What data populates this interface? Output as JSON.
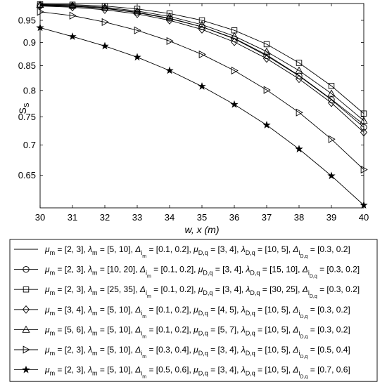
{
  "chart_data": {
    "type": "line",
    "xlabel": "w, x (m)",
    "ylabel": "S",
    "ylabel_sub": "S",
    "xlim": [
      30,
      40
    ],
    "ylim": [
      0.6,
      0.99
    ],
    "y_scale": "log",
    "grid": false,
    "legend_position": "bottom-outside",
    "x_ticks": [
      "30",
      "31",
      "32",
      "33",
      "34",
      "35",
      "36",
      "37",
      "38",
      "39",
      "40"
    ],
    "y_ticks": [
      "0.65",
      "0.7",
      "0.75",
      "0.8",
      "0.85",
      "0.9",
      "0.95"
    ],
    "x": [
      30,
      31,
      32,
      33,
      34,
      35,
      36,
      37,
      38,
      39,
      40
    ],
    "series": [
      {
        "marker": "none",
        "legend": [
          {
            "t": "μ"
          },
          {
            "t": "m",
            "s": "sub"
          },
          {
            "t": " = [2, 3], "
          },
          {
            "t": "λ"
          },
          {
            "t": "m",
            "s": "sub"
          },
          {
            "t": " = [5, 10], "
          },
          {
            "t": "Δ"
          },
          {
            "t": "i",
            "s": "sub"
          },
          {
            "t": "m",
            "s": "subsub"
          },
          {
            "t": " = [0.1, 0.2], "
          },
          {
            "t": "μ"
          },
          {
            "t": "D,q",
            "s": "sub"
          },
          {
            "t": " = [3, 4], "
          },
          {
            "t": "λ"
          },
          {
            "t": "D,q",
            "s": "sub"
          },
          {
            "t": " = [10, 5], "
          },
          {
            "t": "Δ"
          },
          {
            "t": "i",
            "s": "sub"
          },
          {
            "t": "D,q",
            "s": "subsub"
          },
          {
            "t": " = [0.3, 0.2]"
          }
        ],
        "values": [
          0.985,
          0.983,
          0.978,
          0.968,
          0.954,
          0.935,
          0.909,
          0.873,
          0.83,
          0.783,
          0.736
        ]
      },
      {
        "marker": "circle",
        "legend": [
          {
            "t": "μ"
          },
          {
            "t": "m",
            "s": "sub"
          },
          {
            "t": " = [2, 3], "
          },
          {
            "t": "λ"
          },
          {
            "t": "m",
            "s": "sub"
          },
          {
            "t": " = [10, 20], "
          },
          {
            "t": "Δ"
          },
          {
            "t": "i",
            "s": "sub"
          },
          {
            "t": "m",
            "s": "subsub"
          },
          {
            "t": " = [0.1, 0.2], "
          },
          {
            "t": "μ"
          },
          {
            "t": "D,q",
            "s": "sub"
          },
          {
            "t": " = [3, 4], "
          },
          {
            "t": "λ"
          },
          {
            "t": "D,q",
            "s": "sub"
          },
          {
            "t": " = [15, 10], "
          },
          {
            "t": "Δ"
          },
          {
            "t": "i",
            "s": "sub"
          },
          {
            "t": "D,q",
            "s": "subsub"
          },
          {
            "t": " = [0.3, 0.2]"
          }
        ],
        "values": [
          0.986,
          0.984,
          0.979,
          0.969,
          0.955,
          0.935,
          0.908,
          0.871,
          0.829,
          0.782,
          0.731
        ]
      },
      {
        "marker": "square",
        "legend": [
          {
            "t": "μ"
          },
          {
            "t": "m",
            "s": "sub"
          },
          {
            "t": " = [2, 3], "
          },
          {
            "t": "λ"
          },
          {
            "t": "m",
            "s": "sub"
          },
          {
            "t": " = [25, 35], "
          },
          {
            "t": "Δ"
          },
          {
            "t": "i",
            "s": "sub"
          },
          {
            "t": "m",
            "s": "subsub"
          },
          {
            "t": " = [0.1, 0.2], "
          },
          {
            "t": "μ"
          },
          {
            "t": "D,q",
            "s": "sub"
          },
          {
            "t": " = [3, 4], "
          },
          {
            "t": "λ"
          },
          {
            "t": "D,q",
            "s": "sub"
          },
          {
            "t": " = [30, 25], "
          },
          {
            "t": "Δ"
          },
          {
            "t": "i",
            "s": "sub"
          },
          {
            "t": "D,q",
            "s": "subsub"
          },
          {
            "t": " = [0.3, 0.2]"
          }
        ],
        "values": [
          0.988,
          0.987,
          0.984,
          0.977,
          0.966,
          0.95,
          0.927,
          0.896,
          0.856,
          0.809,
          0.756
        ]
      },
      {
        "marker": "diamond",
        "legend": [
          {
            "t": "μ"
          },
          {
            "t": "m",
            "s": "sub"
          },
          {
            "t": " = [3, 4], "
          },
          {
            "t": "λ"
          },
          {
            "t": "m",
            "s": "sub"
          },
          {
            "t": " = [5, 10], "
          },
          {
            "t": "Δ"
          },
          {
            "t": "i",
            "s": "sub"
          },
          {
            "t": "m",
            "s": "subsub"
          },
          {
            "t": " = [0.1, 0.2], "
          },
          {
            "t": "μ"
          },
          {
            "t": "D,q",
            "s": "sub"
          },
          {
            "t": " = [4, 5], "
          },
          {
            "t": "λ"
          },
          {
            "t": "D,q",
            "s": "sub"
          },
          {
            "t": " = [10, 5], "
          },
          {
            "t": "Δ"
          },
          {
            "t": "i",
            "s": "sub"
          },
          {
            "t": "D,q",
            "s": "subsub"
          },
          {
            "t": " = [0.3, 0.2]"
          }
        ],
        "values": [
          0.984,
          0.981,
          0.975,
          0.965,
          0.95,
          0.929,
          0.901,
          0.865,
          0.823,
          0.776,
          0.722
        ]
      },
      {
        "marker": "triangle-up",
        "legend": [
          {
            "t": "μ"
          },
          {
            "t": "m",
            "s": "sub"
          },
          {
            "t": " = [5, 6], "
          },
          {
            "t": "λ"
          },
          {
            "t": "m",
            "s": "sub"
          },
          {
            "t": " = [5, 10], "
          },
          {
            "t": "Δ"
          },
          {
            "t": "i",
            "s": "sub"
          },
          {
            "t": "m",
            "s": "subsub"
          },
          {
            "t": " = [0.1, 0.2], "
          },
          {
            "t": "μ"
          },
          {
            "t": "D,q",
            "s": "sub"
          },
          {
            "t": " = [5, 7], "
          },
          {
            "t": "λ"
          },
          {
            "t": "D,q",
            "s": "sub"
          },
          {
            "t": " = [10, 5], "
          },
          {
            "t": "Δ"
          },
          {
            "t": "i",
            "s": "sub"
          },
          {
            "t": "D,q",
            "s": "subsub"
          },
          {
            "t": " = [0.3, 0.2]"
          }
        ],
        "values": [
          0.987,
          0.985,
          0.981,
          0.972,
          0.959,
          0.94,
          0.914,
          0.88,
          0.84,
          0.794,
          0.743
        ]
      },
      {
        "marker": "triangle-right",
        "legend": [
          {
            "t": "μ"
          },
          {
            "t": "m",
            "s": "sub"
          },
          {
            "t": " = [2, 3], "
          },
          {
            "t": "λ"
          },
          {
            "t": "m",
            "s": "sub"
          },
          {
            "t": " = [5, 10], "
          },
          {
            "t": "Δ"
          },
          {
            "t": "i",
            "s": "sub"
          },
          {
            "t": "m",
            "s": "subsub"
          },
          {
            "t": " = [0.3, 0.4], "
          },
          {
            "t": "μ"
          },
          {
            "t": "D,q",
            "s": "sub"
          },
          {
            "t": " = [3, 4], "
          },
          {
            "t": "λ"
          },
          {
            "t": "D,q",
            "s": "sub"
          },
          {
            "t": " = [10, 5], "
          },
          {
            "t": "Δ"
          },
          {
            "t": "i",
            "s": "sub"
          },
          {
            "t": "D,q",
            "s": "subsub"
          },
          {
            "t": " = [0.5, 0.4]"
          }
        ],
        "values": [
          0.97,
          0.961,
          0.946,
          0.927,
          0.903,
          0.874,
          0.84,
          0.801,
          0.758,
          0.71,
          0.659
        ]
      },
      {
        "marker": "star",
        "legend": [
          {
            "t": "μ"
          },
          {
            "t": "m",
            "s": "sub"
          },
          {
            "t": " = [2, 3], "
          },
          {
            "t": "λ"
          },
          {
            "t": "m",
            "s": "sub"
          },
          {
            "t": " = [5, 10], "
          },
          {
            "t": "Δ"
          },
          {
            "t": "i",
            "s": "sub"
          },
          {
            "t": "m",
            "s": "subsub"
          },
          {
            "t": " = [0.5, 0.6], "
          },
          {
            "t": "μ"
          },
          {
            "t": "D,q",
            "s": "sub"
          },
          {
            "t": " = [3, 4], "
          },
          {
            "t": "λ"
          },
          {
            "t": "D,q",
            "s": "sub"
          },
          {
            "t": " = [10, 5], "
          },
          {
            "t": "Δ"
          },
          {
            "t": "i",
            "s": "sub"
          },
          {
            "t": "D,q",
            "s": "subsub"
          },
          {
            "t": " = [0.7, 0.6]"
          }
        ],
        "values": [
          0.933,
          0.913,
          0.892,
          0.868,
          0.84,
          0.808,
          0.773,
          0.735,
          0.693,
          0.649,
          0.604
        ]
      }
    ]
  }
}
